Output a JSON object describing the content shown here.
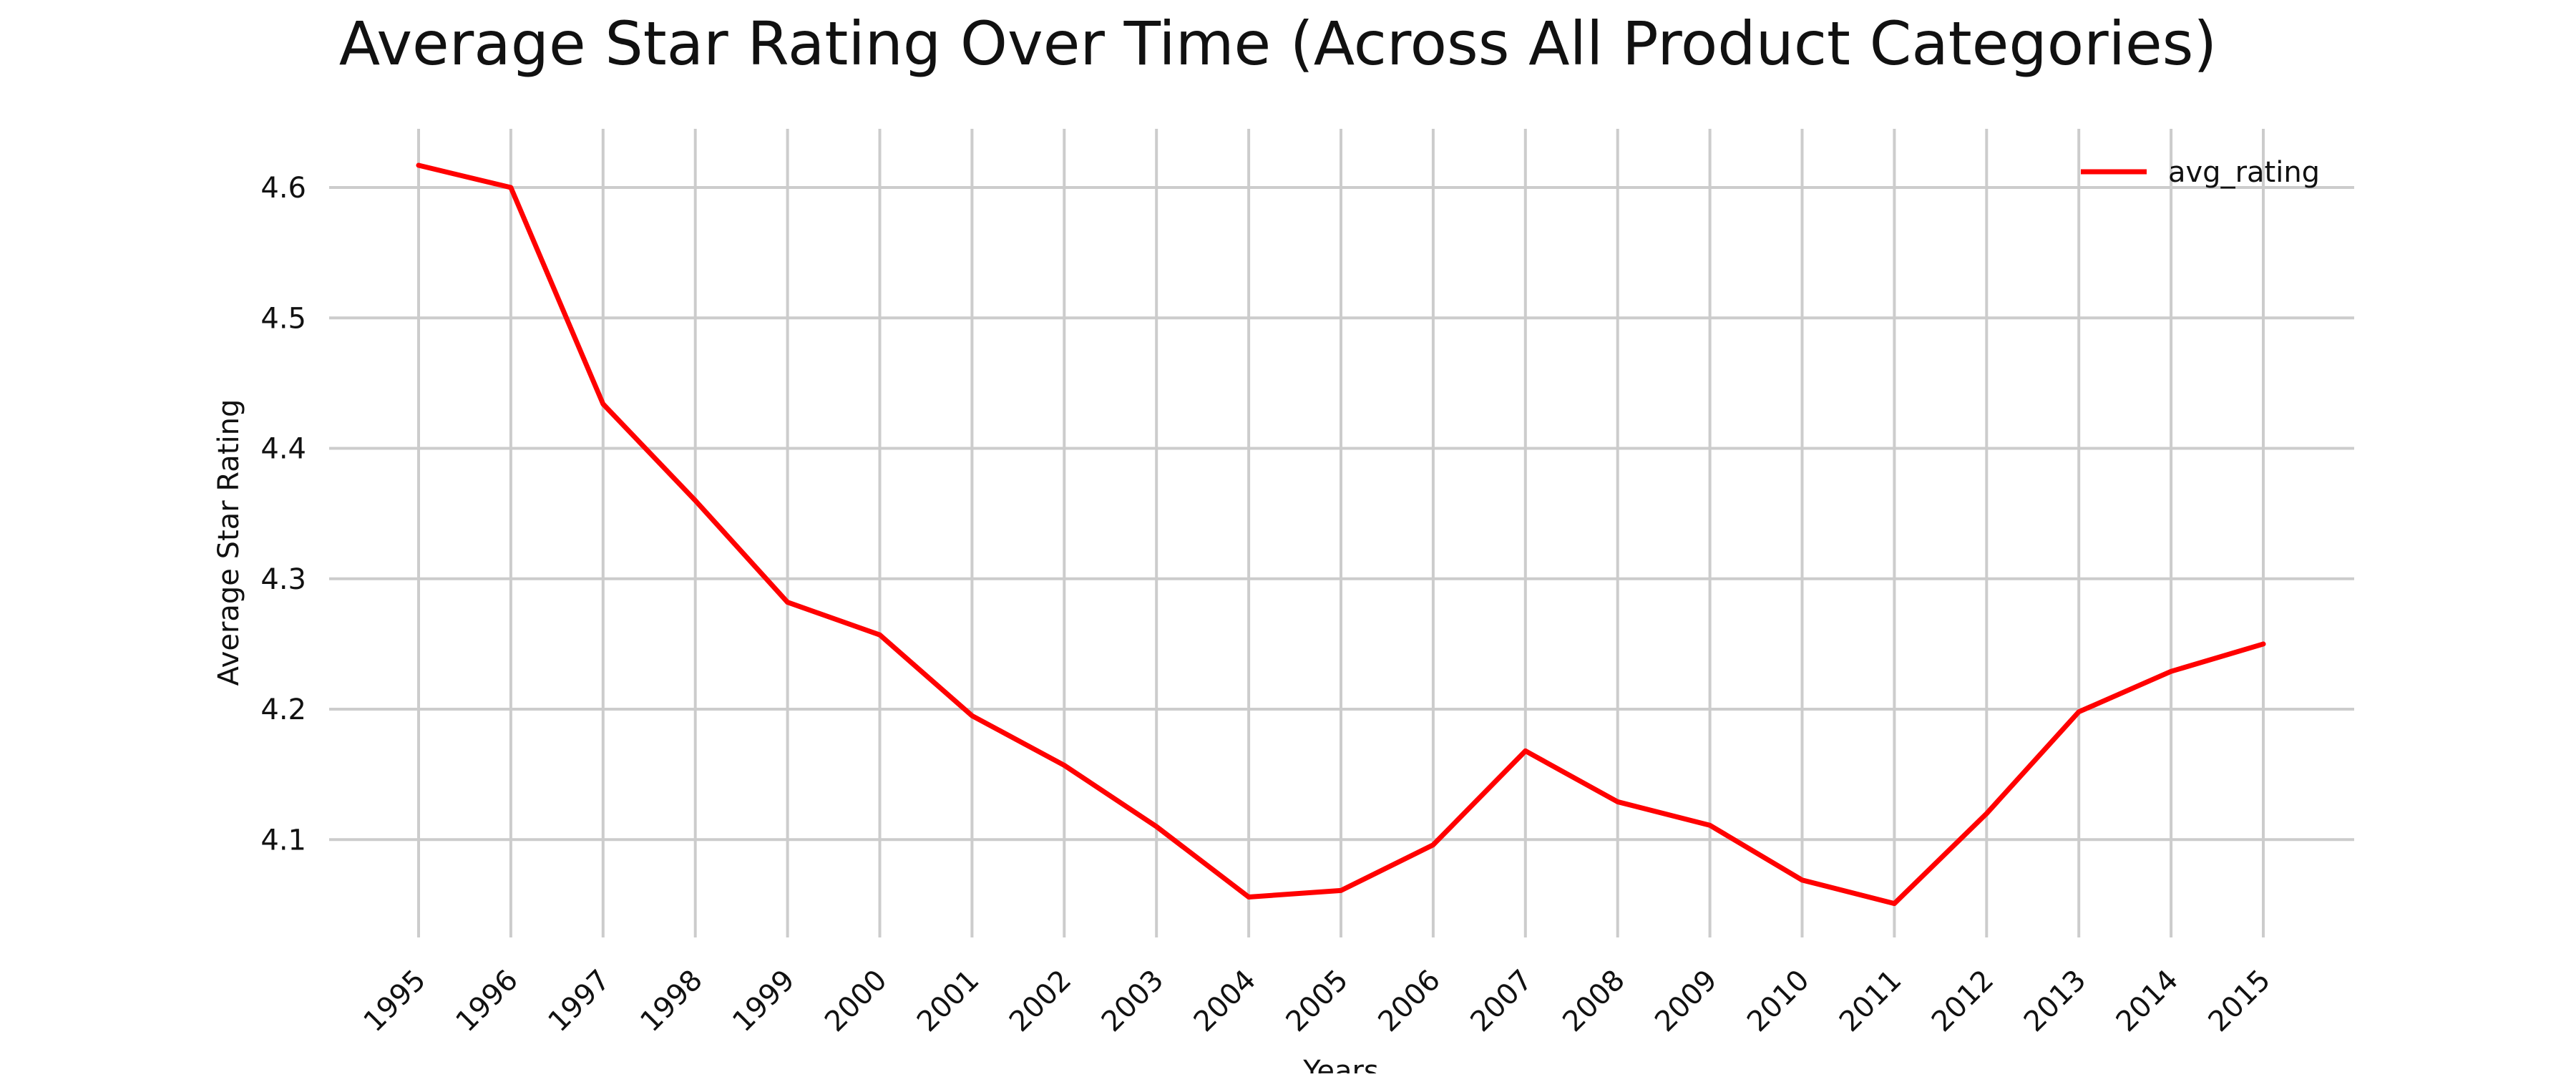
{
  "chart_data": {
    "type": "line",
    "title": "Average Star Rating Over Time (Across All Product Categories)",
    "xlabel": "Years",
    "ylabel": "Average Star Rating",
    "x": [
      "1995",
      "1996",
      "1997",
      "1998",
      "1999",
      "2000",
      "2001",
      "2002",
      "2003",
      "2004",
      "2005",
      "2006",
      "2007",
      "2008",
      "2009",
      "2010",
      "2011",
      "2012",
      "2013",
      "2014",
      "2015"
    ],
    "yticks": [
      "4.1",
      "4.2",
      "4.3",
      "4.4",
      "4.5",
      "4.6"
    ],
    "ylim": [
      4.025,
      4.645
    ],
    "grid": true,
    "legend_position": "top-right",
    "series": [
      {
        "name": "avg_rating",
        "color": "#ff0000",
        "values": [
          4.617,
          4.6,
          4.434,
          4.36,
          4.282,
          4.257,
          4.195,
          4.157,
          4.11,
          4.056,
          4.061,
          4.096,
          4.168,
          4.129,
          4.111,
          4.069,
          4.051,
          4.12,
          4.198,
          4.229,
          4.25
        ]
      }
    ]
  }
}
